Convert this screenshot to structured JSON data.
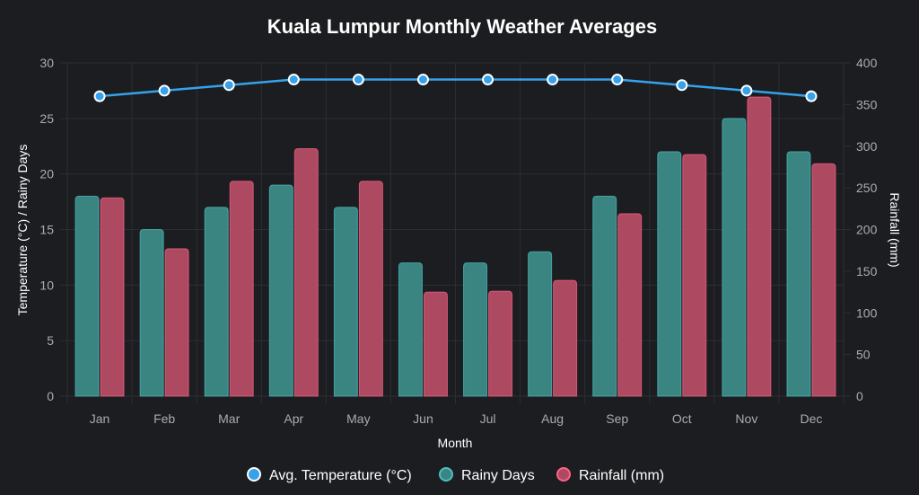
{
  "chart_data": {
    "type": "bar",
    "title": "Kuala Lumpur Monthly Weather Averages",
    "xlabel": "Month",
    "ylabel": "Temperature (°C) / Rainy Days",
    "y2label": "Rainfall (mm)",
    "categories": [
      "Jan",
      "Feb",
      "Mar",
      "Apr",
      "May",
      "Jun",
      "Jul",
      "Aug",
      "Sep",
      "Oct",
      "Nov",
      "Dec"
    ],
    "ylim": [
      0,
      30
    ],
    "y_ticks": [
      0,
      5,
      10,
      15,
      20,
      25,
      30
    ],
    "y2lim": [
      0,
      400
    ],
    "y2_ticks": [
      0,
      50,
      100,
      150,
      200,
      250,
      300,
      350,
      400
    ],
    "grid": true,
    "legend_position": "bottom",
    "series": [
      {
        "name": "Avg. Temperature (°C)",
        "type": "line",
        "axis": "left",
        "color": "#36a2eb",
        "values": [
          27,
          27.5,
          28,
          28.5,
          28.5,
          28.5,
          28.5,
          28.5,
          28.5,
          28,
          27.5,
          27
        ]
      },
      {
        "name": "Rainy Days",
        "type": "bar",
        "axis": "left",
        "color": "#3a8582",
        "border_color": "#4bc0c0",
        "values": [
          18,
          15,
          17,
          19,
          17,
          12,
          12,
          13,
          18,
          22,
          25,
          22
        ]
      },
      {
        "name": "Rainfall (mm)",
        "type": "bar",
        "axis": "right",
        "color": "#ad4a62",
        "border_color": "#ff6384",
        "values": [
          238,
          177,
          258,
          297,
          258,
          125,
          126,
          139,
          219,
          290,
          359,
          279
        ]
      }
    ]
  },
  "colors": {
    "background": "#1c1d21",
    "grid": "#2c2e33",
    "tick_text": "#a9abb0",
    "title_text": "#ffffff"
  }
}
